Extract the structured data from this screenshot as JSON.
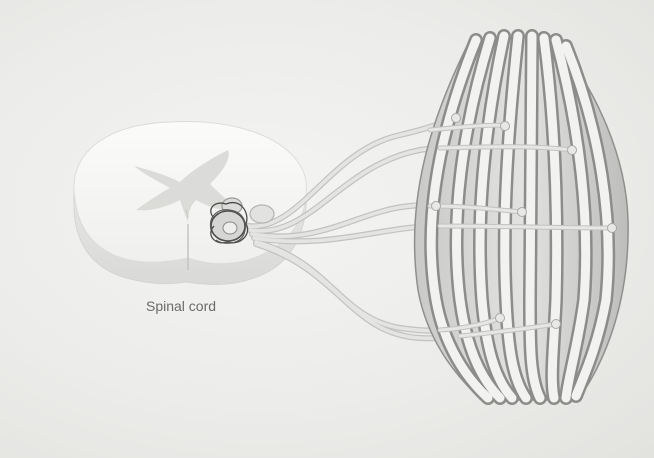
{
  "labels": {
    "spinal_cord": "Spinal cord"
  },
  "colors": {
    "background": "#ececea",
    "cord_fill": "#f6f6f4",
    "gray_matter": "#d2d2d0",
    "nerve": "#d8d8d6",
    "nerve_outline": "#bdbdbb",
    "muscle_fiber_light": "#f3f3f1",
    "muscle_fiber_dark": "#9a9a98",
    "motor_neuron_outline": "#4e4e4c"
  }
}
